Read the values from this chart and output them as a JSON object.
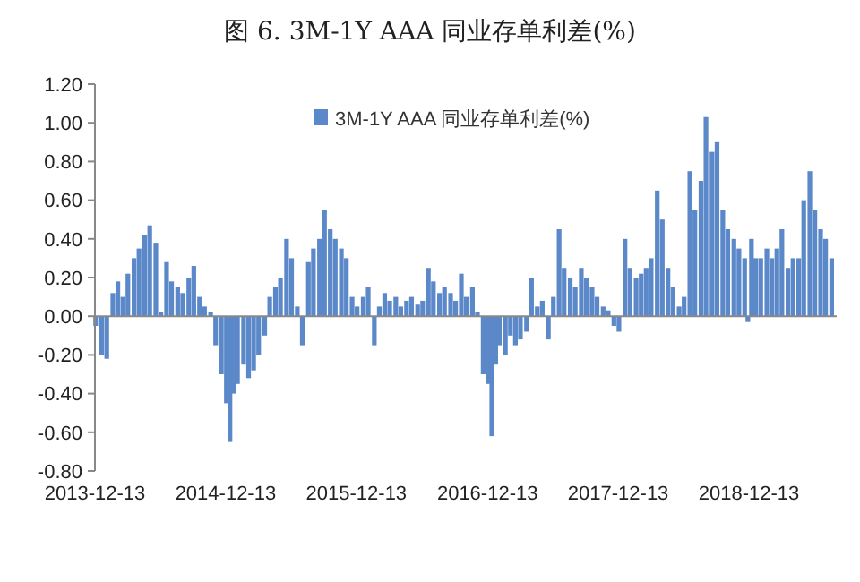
{
  "chart_data": {
    "type": "bar",
    "title": "图 6. 3M-1Y AAA 同业存单利差(%)",
    "x": [
      "2013-12-15",
      "2014-01-01",
      "2014-01-15",
      "2014-02-01",
      "2014-02-15",
      "2014-03-01",
      "2014-03-15",
      "2014-04-01",
      "2014-04-15",
      "2014-05-01",
      "2014-05-15",
      "2014-06-01",
      "2014-06-15",
      "2014-07-01",
      "2014-07-15",
      "2014-08-01",
      "2014-08-15",
      "2014-09-01",
      "2014-09-15",
      "2014-10-01",
      "2014-10-15",
      "2014-11-01",
      "2014-11-15",
      "2014-12-01",
      "2014-12-15",
      "2014-12-25",
      "2015-01-05",
      "2015-01-15",
      "2015-02-01",
      "2015-02-15",
      "2015-03-01",
      "2015-03-15",
      "2015-04-01",
      "2015-04-15",
      "2015-05-01",
      "2015-05-15",
      "2015-06-01",
      "2015-06-15",
      "2015-07-01",
      "2015-07-15",
      "2015-08-01",
      "2015-08-15",
      "2015-09-01",
      "2015-09-15",
      "2015-10-01",
      "2015-10-15",
      "2015-11-01",
      "2015-11-15",
      "2015-12-01",
      "2015-12-15",
      "2016-01-01",
      "2016-01-15",
      "2016-02-01",
      "2016-02-15",
      "2016-03-01",
      "2016-03-15",
      "2016-04-01",
      "2016-04-15",
      "2016-05-01",
      "2016-05-15",
      "2016-06-01",
      "2016-06-15",
      "2016-07-01",
      "2016-07-15",
      "2016-08-01",
      "2016-08-15",
      "2016-09-01",
      "2016-09-15",
      "2016-10-01",
      "2016-10-15",
      "2016-11-01",
      "2016-11-15",
      "2016-12-01",
      "2016-12-15",
      "2016-12-25",
      "2017-01-05",
      "2017-01-15",
      "2017-02-01",
      "2017-02-15",
      "2017-03-01",
      "2017-03-15",
      "2017-04-01",
      "2017-04-15",
      "2017-05-01",
      "2017-05-15",
      "2017-06-01",
      "2017-06-15",
      "2017-07-01",
      "2017-07-15",
      "2017-08-01",
      "2017-08-15",
      "2017-09-01",
      "2017-09-15",
      "2017-10-01",
      "2017-10-15",
      "2017-11-01",
      "2017-11-15",
      "2017-12-01",
      "2017-12-15",
      "2018-01-01",
      "2018-01-15",
      "2018-02-01",
      "2018-02-15",
      "2018-03-01",
      "2018-03-15",
      "2018-04-01",
      "2018-04-15",
      "2018-05-01",
      "2018-05-15",
      "2018-06-01",
      "2018-06-15",
      "2018-07-01",
      "2018-07-15",
      "2018-08-01",
      "2018-08-15",
      "2018-09-01",
      "2018-09-15",
      "2018-10-01",
      "2018-10-15",
      "2018-11-01",
      "2018-11-15",
      "2018-12-01",
      "2018-12-10",
      "2018-12-20",
      "2019-01-01",
      "2019-01-15",
      "2019-02-01",
      "2019-02-15",
      "2019-03-01",
      "2019-03-15",
      "2019-04-01",
      "2019-04-15",
      "2019-05-01",
      "2019-05-15",
      "2019-06-01",
      "2019-06-15",
      "2019-07-01",
      "2019-07-15",
      "2019-08-01"
    ],
    "series": [
      {
        "name": "3M-1Y AAA 同业存单利差(%)",
        "color": "#5b88c8",
        "values": [
          -0.05,
          -0.2,
          -0.22,
          0.12,
          0.18,
          0.1,
          0.22,
          0.3,
          0.35,
          0.42,
          0.47,
          0.38,
          0.02,
          0.28,
          0.18,
          0.15,
          0.12,
          0.2,
          0.26,
          0.1,
          0.05,
          0.02,
          -0.15,
          -0.3,
          -0.45,
          -0.65,
          -0.4,
          -0.35,
          -0.25,
          -0.32,
          -0.28,
          -0.2,
          -0.1,
          0.1,
          0.15,
          0.2,
          0.4,
          0.3,
          0.05,
          -0.15,
          0.28,
          0.35,
          0.4,
          0.55,
          0.45,
          0.4,
          0.35,
          0.3,
          0.1,
          0.05,
          0.1,
          0.15,
          -0.15,
          0.05,
          0.12,
          0.08,
          0.1,
          0.05,
          0.08,
          0.1,
          0.06,
          0.08,
          0.25,
          0.18,
          0.12,
          0.15,
          0.12,
          0.08,
          0.22,
          0.1,
          0.15,
          0.02,
          -0.3,
          -0.35,
          -0.62,
          -0.25,
          -0.15,
          -0.2,
          -0.1,
          -0.15,
          -0.12,
          -0.08,
          0.2,
          0.05,
          0.08,
          -0.12,
          0.1,
          0.45,
          0.25,
          0.2,
          0.15,
          0.25,
          0.2,
          0.15,
          0.1,
          0.05,
          0.03,
          -0.05,
          -0.08,
          0.4,
          0.25,
          0.2,
          0.22,
          0.25,
          0.3,
          0.65,
          0.5,
          0.25,
          0.15,
          0.05,
          0.1,
          0.75,
          0.55,
          0.7,
          1.03,
          0.85,
          0.9,
          0.55,
          0.45,
          0.4,
          0.35,
          0.3,
          -0.03,
          0.4,
          0.3,
          0.3,
          0.35,
          0.3,
          0.35,
          0.45,
          0.25,
          0.3,
          0.3,
          0.6,
          0.75,
          0.55,
          0.45,
          0.4,
          0.3
        ]
      }
    ],
    "xlim": [
      "2013-12-13",
      "2019-08-15"
    ],
    "xticks": [
      "2013-12-13",
      "2014-12-13",
      "2015-12-13",
      "2016-12-13",
      "2017-12-13",
      "2018-12-13"
    ],
    "ylim": [
      -0.8,
      1.2
    ],
    "yticks": [
      {
        "value": -0.8,
        "label": "-0.80"
      },
      {
        "value": -0.6,
        "label": "-0.60"
      },
      {
        "value": -0.4,
        "label": "-0.40"
      },
      {
        "value": -0.2,
        "label": "-0.20"
      },
      {
        "value": 0,
        "label": "0.00"
      },
      {
        "value": 0.2,
        "label": "0.20"
      },
      {
        "value": 0.4,
        "label": "0.40"
      },
      {
        "value": 0.6,
        "label": "0.60"
      },
      {
        "value": 0.8,
        "label": "0.80"
      },
      {
        "value": 1,
        "label": "1.00"
      },
      {
        "value": 1.2,
        "label": "1.20"
      }
    ],
    "legend": "top"
  }
}
